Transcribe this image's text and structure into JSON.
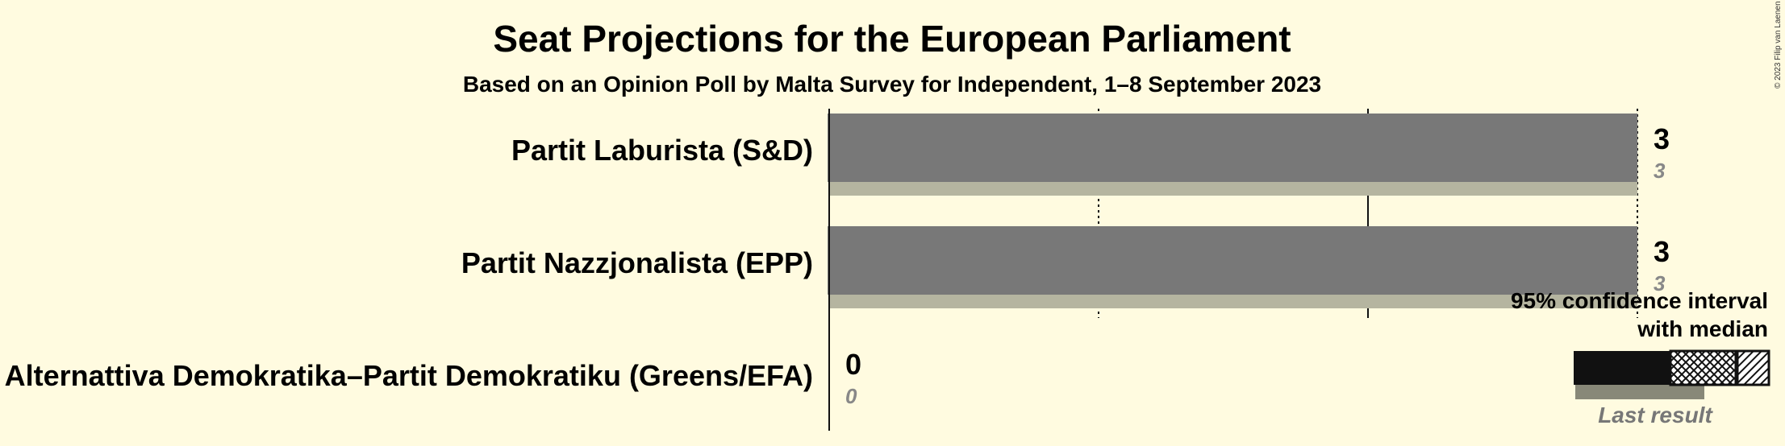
{
  "chart_data": {
    "type": "bar",
    "title": "Seat Projections for the European Parliament",
    "subtitle": "Based on an Opinion Poll by Malta Survey for Independent, 1–8 September 2023",
    "categories": [
      "Partit Laburista (S&D)",
      "Partit Nazzjonalista (EPP)",
      "Alternattiva Demokratika–Partit Demokratiku (Greens/EFA)"
    ],
    "series": [
      {
        "name": "95% confidence interval with median",
        "values": [
          3,
          3,
          0
        ]
      },
      {
        "name": "Last result",
        "values": [
          3,
          3,
          0
        ]
      }
    ],
    "value_labels": [
      "3",
      "3",
      "0"
    ],
    "last_result_labels": [
      "3",
      "3",
      "0"
    ],
    "xlim": [
      0,
      3
    ],
    "gridlines": [
      1,
      2,
      3
    ],
    "legend": {
      "ci_line1": "95% confidence interval",
      "ci_line2": "with median",
      "last_result": "Last result",
      "placement": "bottom-right"
    },
    "copyright": "© 2023 Filip van Laenen"
  },
  "colors": {
    "background": "#FFFBE0",
    "bar": "#787878",
    "last_result_bar": "#B5B5A0",
    "text": "#111111",
    "last_result_text": "#888888"
  }
}
